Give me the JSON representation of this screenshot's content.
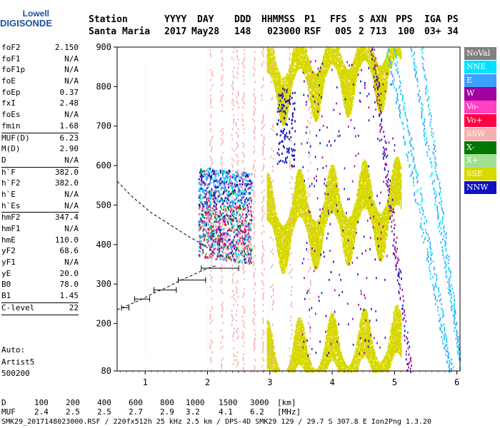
{
  "logo": {
    "line1": "Lowell",
    "line2": "DIGISONDE"
  },
  "header": {
    "labels": [
      "Station",
      "YYYY",
      "DAY",
      "DDD",
      "HHMMSS",
      "P1",
      "FFS",
      "S",
      "AXN",
      "PPS",
      "IGA",
      "PS"
    ],
    "values": [
      "Santa Maria",
      "2017",
      "May28",
      "148",
      "023000",
      "RSF",
      "005",
      "2",
      "713",
      "100",
      "03+",
      "34"
    ]
  },
  "params_group1": [
    {
      "k": "foF2",
      "v": "2.150"
    },
    {
      "k": "foF1",
      "v": "N/A"
    },
    {
      "k": "foF1p",
      "v": "N/A"
    },
    {
      "k": "foE",
      "v": "N/A"
    },
    {
      "k": "foEp",
      "v": "0.37"
    },
    {
      "k": "fxI",
      "v": "2.48"
    },
    {
      "k": "foEs",
      "v": "N/A"
    },
    {
      "k": "fmin",
      "v": "1.68"
    }
  ],
  "params_group2": [
    {
      "k": "MUF(D)",
      "v": "6.23"
    },
    {
      "k": "M(D)",
      "v": "2.90"
    },
    {
      "k": "D",
      "v": "N/A"
    }
  ],
  "params_group3": [
    {
      "k": "h`F",
      "v": "382.0"
    },
    {
      "k": "h`F2",
      "v": "382.0"
    },
    {
      "k": "h`E",
      "v": "N/A"
    },
    {
      "k": "h`Es",
      "v": "N/A"
    }
  ],
  "params_group4": [
    {
      "k": "hmF2",
      "v": "347.4"
    },
    {
      "k": "hmF1",
      "v": "N/A"
    },
    {
      "k": "hmE",
      "v": "110.0"
    },
    {
      "k": "yF2",
      "v": "68.6"
    },
    {
      "k": "yF1",
      "v": "N/A"
    },
    {
      "k": "yE",
      "v": "20.0"
    },
    {
      "k": "B0",
      "v": "78.0"
    },
    {
      "k": "B1",
      "v": "1.45"
    }
  ],
  "params_group5": [
    {
      "k": "C-level",
      "v": "22"
    }
  ],
  "auto": {
    "line1": "Auto:",
    "line2": "Artist5",
    "line3": "500200"
  },
  "legend": [
    {
      "label": "NoVal",
      "color": "#808080"
    },
    {
      "label": "NNE",
      "color": "#00e0ff"
    },
    {
      "label": "E",
      "color": "#3aa0ff"
    },
    {
      "label": "W",
      "color": "#a000a0"
    },
    {
      "label": "Vo-",
      "color": "#ff40c0"
    },
    {
      "label": "Vo+",
      "color": "#ff0040"
    },
    {
      "label": "SSW",
      "color": "#f6b0b0"
    },
    {
      "label": "X-",
      "color": "#007800"
    },
    {
      "label": "X+",
      "color": "#a0e090"
    },
    {
      "label": "SSE",
      "color": "#d8d800"
    },
    {
      "label": "NNW",
      "color": "#1010c0"
    }
  ],
  "bottom": {
    "d_label": "D",
    "d_values": [
      "100",
      "200",
      "400",
      "600",
      "800",
      "1000",
      "1500",
      "3000",
      "[km]"
    ],
    "muf_label": "MUF",
    "muf_values": [
      "2.4",
      "2.5",
      "2.5",
      "2.7",
      "2.9",
      "3.2",
      "4.1",
      "6.2",
      "[MHz]"
    ],
    "footer": "SMK29_2017148023000.RSF / 220fx512h 25 kHz 2.5 km / DPS-4D SMK29 129 / 29.7 S 307.8 E Ion2Png 1.3.20"
  },
  "chart_data": {
    "type": "scatter",
    "xlim": [
      0.55,
      6.05
    ],
    "ylim": [
      80,
      900
    ],
    "xticks": [
      1,
      2,
      3,
      4,
      5,
      6
    ],
    "yticks": [
      80,
      200,
      300,
      400,
      500,
      600,
      700,
      800,
      900
    ],
    "profile_dashed": {
      "x": [
        0.55,
        0.75,
        0.95,
        1.15,
        1.35,
        1.55,
        1.75,
        1.9,
        2.05,
        2.15
      ],
      "y": [
        235,
        248,
        262,
        278,
        292,
        308,
        322,
        333,
        342,
        347
      ]
    },
    "topside_dashed": {
      "x": [
        0.55,
        0.8,
        1.1,
        1.4,
        1.7,
        1.95,
        2.1,
        2.15
      ],
      "y": [
        560,
        520,
        480,
        450,
        420,
        398,
        380,
        370
      ]
    },
    "error_bars": [
      {
        "x": 0.68,
        "y": 240,
        "xerr": 0.06
      },
      {
        "x": 0.95,
        "y": 262,
        "xerr": 0.12
      },
      {
        "x": 1.32,
        "y": 285,
        "xerr": 0.18
      },
      {
        "x": 1.75,
        "y": 310,
        "xerr": 0.22
      },
      {
        "x": 2.2,
        "y": 340,
        "xerr": 0.3
      }
    ],
    "sse_band_centers": [
      {
        "x": [
          3.0,
          3.2,
          3.45,
          3.7,
          3.95,
          4.2,
          4.45,
          4.7,
          4.95
        ],
        "y_offset": [
          0,
          0,
          0,
          0,
          0,
          0,
          0,
          0,
          0
        ]
      }
    ],
    "traces": [
      {
        "name": "",
        "base": 80
      },
      {
        "name": "",
        "base": 460
      },
      {
        "name": "",
        "base": 835
      }
    ]
  }
}
